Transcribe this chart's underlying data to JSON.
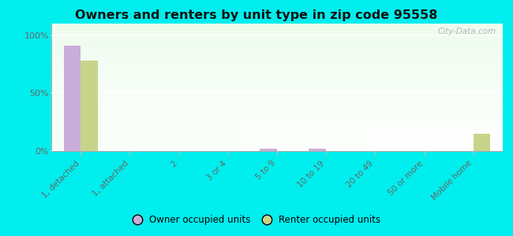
{
  "title": "Owners and renters by unit type in zip code 95558",
  "categories": [
    "1, detached",
    "1, attached",
    "2",
    "3 or 4",
    "5 to 9",
    "10 to 19",
    "20 to 49",
    "50 or more",
    "Mobile home"
  ],
  "owner_values": [
    91,
    0,
    0,
    0,
    2,
    2,
    0,
    0,
    0
  ],
  "renter_values": [
    78,
    0,
    0,
    0,
    0,
    0,
    0,
    0,
    15
  ],
  "owner_color": "#c9aed9",
  "renter_color": "#c8d48a",
  "outer_background": "#00eeee",
  "yticks": [
    0,
    50,
    100
  ],
  "ylim": [
    0,
    110
  ],
  "watermark": "City-Data.com",
  "legend_owner": "Owner occupied units",
  "legend_renter": "Renter occupied units",
  "bar_width": 0.35
}
